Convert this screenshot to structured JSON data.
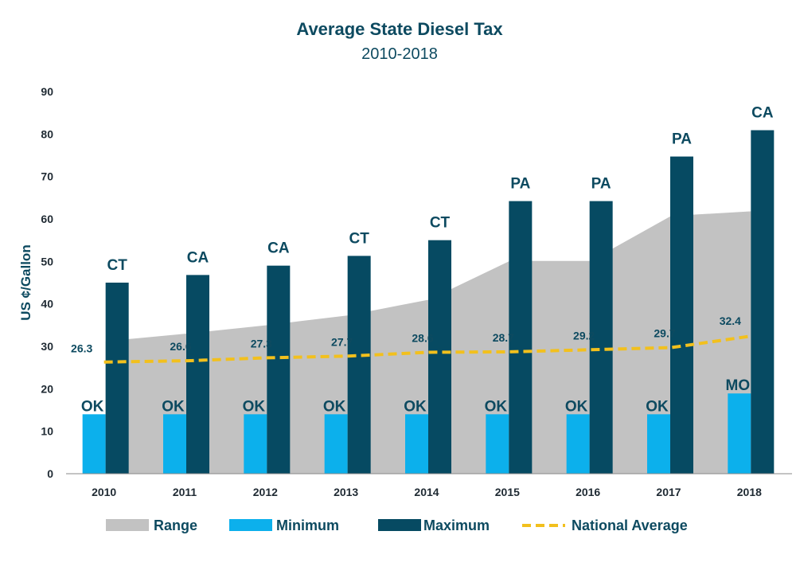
{
  "chart_data": {
    "type": "bar",
    "title": "Average State Diesel Tax",
    "subtitle": "2010-2018",
    "ylabel": "US ¢/Gallon",
    "xlabel": "",
    "ylim": [
      0,
      90
    ],
    "yticks": [
      0,
      10,
      20,
      30,
      40,
      50,
      60,
      70,
      80,
      90
    ],
    "categories": [
      "2010",
      "2011",
      "2012",
      "2013",
      "2014",
      "2015",
      "2016",
      "2017",
      "2018"
    ],
    "series": [
      {
        "name": "Range",
        "kind": "area",
        "color": "#c2c2c2",
        "values": [
          31.2,
          33.0,
          35.0,
          37.3,
          41.0,
          50.1,
          50.1,
          60.7,
          61.8
        ]
      },
      {
        "name": "Minimum",
        "kind": "bar",
        "color": "#0cb0ec",
        "values": [
          14,
          14,
          14,
          14,
          14,
          14,
          14,
          14,
          18.9
        ],
        "labels": [
          "OK",
          "OK",
          "OK",
          "OK",
          "OK",
          "OK",
          "OK",
          "OK",
          "MO"
        ]
      },
      {
        "name": "Maximum",
        "kind": "bar",
        "color": "#064a62",
        "values": [
          45,
          46.8,
          49,
          51.3,
          55,
          64.2,
          64.2,
          74.7,
          80.9
        ],
        "labels": [
          "CT",
          "CA",
          "CA",
          "CT",
          "CT",
          "PA",
          "PA",
          "PA",
          "CA"
        ]
      },
      {
        "name": "National Average",
        "kind": "line",
        "style": "dashed",
        "color": "#f2c01d",
        "values": [
          26.3,
          26.6,
          27.3,
          27.7,
          28.6,
          28.7,
          29.2,
          29.7,
          32.4
        ],
        "labels": [
          "26.3",
          "26.6",
          "27.3",
          "27.7",
          "28.6",
          "28.7",
          "29.2",
          "29.7",
          "32.4"
        ]
      }
    ],
    "grid": false,
    "legend_position": "bottom"
  }
}
